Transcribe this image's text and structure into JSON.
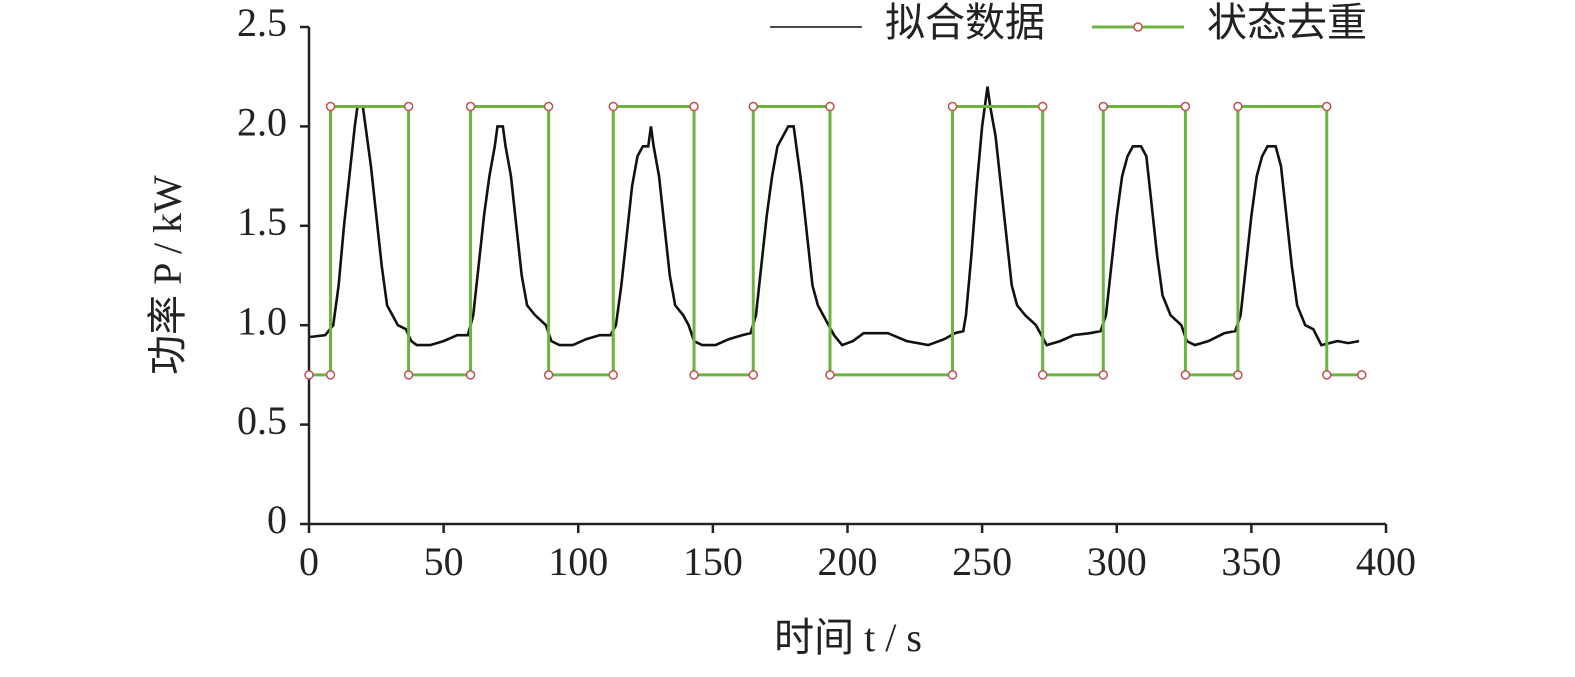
{
  "chart_data": {
    "type": "line",
    "xlabel": "时间 t / s",
    "ylabel": "功率 P / kW",
    "xlim": [
      0,
      400
    ],
    "ylim": [
      0,
      2.5
    ],
    "xticks": [
      0,
      50,
      100,
      150,
      200,
      250,
      300,
      350,
      400
    ],
    "yticks": [
      0,
      0.5,
      {
        "value": 1,
        "label": "1.0"
      },
      1.5,
      {
        "value": 2,
        "label": "2.0"
      },
      2.5
    ],
    "legend": "top-right",
    "series": [
      {
        "name": "拟合数据",
        "color": "#111111",
        "markers": false,
        "x": [
          0,
          6,
          9,
          11,
          13,
          15,
          17,
          18,
          20,
          21,
          23,
          25,
          27,
          29,
          31,
          33,
          36,
          38,
          40,
          45,
          50,
          55,
          59,
          61,
          63,
          65,
          67,
          69,
          70,
          72,
          73,
          75,
          77,
          79,
          81,
          84,
          88,
          90,
          93,
          98,
          103,
          108,
          112,
          114,
          116,
          118,
          120,
          122,
          124,
          126,
          127,
          128,
          130,
          132,
          134,
          136,
          139,
          141,
          143,
          146,
          151,
          156,
          161,
          164,
          166,
          168,
          170,
          172,
          174,
          178,
          180,
          181,
          183,
          185,
          187,
          189,
          193,
          195,
          198,
          202,
          206,
          215,
          222,
          230,
          236,
          240,
          243,
          244,
          246,
          248,
          250,
          252,
          253,
          255,
          257,
          259,
          261,
          263,
          266,
          270,
          272,
          274,
          279,
          284,
          290,
          294,
          296,
          298,
          300,
          302,
          304,
          306,
          309,
          311,
          313,
          315,
          317,
          320,
          324,
          326,
          329,
          334,
          340,
          344,
          346,
          348,
          350,
          352,
          354,
          356,
          359,
          361,
          363,
          365,
          367,
          370,
          373,
          376,
          382,
          386,
          390
        ],
        "values": [
          0.94,
          0.95,
          1.0,
          1.2,
          1.5,
          1.75,
          2.0,
          2.1,
          2.1,
          2.0,
          1.8,
          1.55,
          1.3,
          1.1,
          1.05,
          1.0,
          0.98,
          0.92,
          0.9,
          0.9,
          0.92,
          0.95,
          0.95,
          1.05,
          1.3,
          1.55,
          1.75,
          1.9,
          2.0,
          2.0,
          1.9,
          1.75,
          1.5,
          1.25,
          1.1,
          1.05,
          1.0,
          0.92,
          0.9,
          0.9,
          0.93,
          0.95,
          0.95,
          1.0,
          1.2,
          1.45,
          1.7,
          1.85,
          1.9,
          1.9,
          2.0,
          1.9,
          1.75,
          1.5,
          1.25,
          1.1,
          1.05,
          1.0,
          0.92,
          0.9,
          0.9,
          0.93,
          0.95,
          0.96,
          1.05,
          1.3,
          1.55,
          1.75,
          1.9,
          2.0,
          2.0,
          1.9,
          1.7,
          1.45,
          1.2,
          1.1,
          1.0,
          0.95,
          0.9,
          0.92,
          0.96,
          0.96,
          0.92,
          0.9,
          0.93,
          0.96,
          0.97,
          1.05,
          1.35,
          1.7,
          2.0,
          2.2,
          2.1,
          1.95,
          1.7,
          1.45,
          1.2,
          1.1,
          1.05,
          1.0,
          0.95,
          0.9,
          0.92,
          0.95,
          0.96,
          0.97,
          1.05,
          1.3,
          1.55,
          1.75,
          1.85,
          1.9,
          1.9,
          1.85,
          1.6,
          1.35,
          1.15,
          1.05,
          1.0,
          0.92,
          0.9,
          0.92,
          0.96,
          0.97,
          1.05,
          1.3,
          1.55,
          1.75,
          1.85,
          1.9,
          1.9,
          1.8,
          1.55,
          1.3,
          1.1,
          1.0,
          0.98,
          0.9,
          0.92,
          0.91,
          0.92
        ]
      },
      {
        "name": "状态去重",
        "color": "#6db33f",
        "markers": true,
        "marker_color": "#c0504d",
        "x": [
          0,
          8,
          8,
          37,
          37,
          60,
          60,
          89,
          89,
          113,
          113,
          143,
          143,
          165,
          165,
          193.5,
          193.5,
          239,
          239,
          272.5,
          272.5,
          295,
          295,
          325.5,
          325.5,
          345,
          345,
          378,
          378,
          391
        ],
        "values": [
          0.75,
          0.75,
          2.1,
          2.1,
          0.75,
          0.75,
          2.1,
          2.1,
          0.75,
          0.75,
          2.1,
          2.1,
          0.75,
          0.75,
          2.1,
          2.1,
          0.75,
          0.75,
          2.1,
          2.1,
          0.75,
          0.75,
          2.1,
          2.1,
          0.75,
          0.75,
          2.1,
          2.1,
          0.75,
          0.75
        ]
      }
    ]
  }
}
